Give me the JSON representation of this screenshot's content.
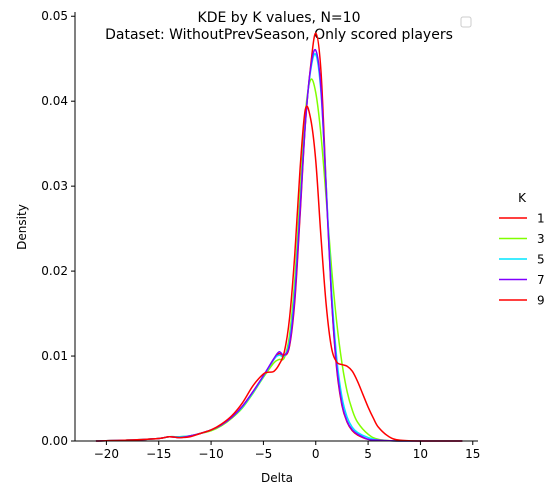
{
  "chart_data": {
    "type": "line",
    "title": "KDE by K values, N=10",
    "subtitle": "Dataset: WithoutPrevSeason, Only scored players",
    "xlabel": "Delta",
    "ylabel": "Density",
    "xlim": [
      -23,
      15.5
    ],
    "ylim": [
      0,
      0.0505
    ],
    "x_ticks": [
      -20,
      -15,
      -10,
      -5,
      0,
      5,
      10,
      15
    ],
    "x_tick_labels": [
      "−20",
      "−15",
      "−10",
      "−5",
      "0",
      "5",
      "10",
      "15"
    ],
    "y_ticks": [
      0,
      0.01,
      0.02,
      0.03,
      0.04,
      0.05
    ],
    "y_tick_labels": [
      "0.00",
      "0.01",
      "0.02",
      "0.03",
      "0.04",
      "0.05"
    ],
    "grid": false,
    "legend": {
      "title": "K",
      "placement": "right"
    },
    "series": [
      {
        "name": "1",
        "color": "#ff0000",
        "points": [
          [
            -21,
            0
          ],
          [
            -18,
            0.0001
          ],
          [
            -15,
            0.0003
          ],
          [
            -14,
            0.0005
          ],
          [
            -13,
            0.0004
          ],
          [
            -12,
            0.0006
          ],
          [
            -11,
            0.0009
          ],
          [
            -10,
            0.0013
          ],
          [
            -9,
            0.0019
          ],
          [
            -8,
            0.0028
          ],
          [
            -7,
            0.0041
          ],
          [
            -6,
            0.0058
          ],
          [
            -5,
            0.0076
          ],
          [
            -4,
            0.0096
          ],
          [
            -3.5,
            0.0103
          ],
          [
            -3,
            0.01
          ],
          [
            -2.5,
            0.0112
          ],
          [
            -2,
            0.0165
          ],
          [
            -1.5,
            0.0265
          ],
          [
            -1,
            0.0372
          ],
          [
            -0.5,
            0.044
          ],
          [
            0,
            0.048
          ],
          [
            0.5,
            0.0435
          ],
          [
            1,
            0.03
          ],
          [
            1.5,
            0.017
          ],
          [
            2,
            0.0085
          ],
          [
            2.5,
            0.0042
          ],
          [
            3,
            0.0022
          ],
          [
            3.5,
            0.0012
          ],
          [
            4,
            0.0007
          ],
          [
            5,
            0.0002
          ],
          [
            6,
            0.0001
          ],
          [
            8,
            0
          ],
          [
            14,
            0
          ]
        ]
      },
      {
        "name": "3",
        "color": "#80ff00",
        "points": [
          [
            -21,
            0
          ],
          [
            -18,
            0.0001
          ],
          [
            -15,
            0.0003
          ],
          [
            -14,
            0.0005
          ],
          [
            -13,
            0.0005
          ],
          [
            -12,
            0.0006
          ],
          [
            -11,
            0.0009
          ],
          [
            -10,
            0.0012
          ],
          [
            -9,
            0.0018
          ],
          [
            -8,
            0.0027
          ],
          [
            -7,
            0.0039
          ],
          [
            -6,
            0.0056
          ],
          [
            -5,
            0.0075
          ],
          [
            -4,
            0.0092
          ],
          [
            -3.5,
            0.0096
          ],
          [
            -3,
            0.0098
          ],
          [
            -2.5,
            0.0125
          ],
          [
            -2,
            0.019
          ],
          [
            -1.5,
            0.029
          ],
          [
            -1,
            0.0385
          ],
          [
            -0.5,
            0.0425
          ],
          [
            0,
            0.041
          ],
          [
            0.5,
            0.036
          ],
          [
            1,
            0.0285
          ],
          [
            1.5,
            0.0205
          ],
          [
            2,
            0.014
          ],
          [
            2.5,
            0.0092
          ],
          [
            3,
            0.0058
          ],
          [
            3.5,
            0.0036
          ],
          [
            4,
            0.0022
          ],
          [
            5,
            0.0008
          ],
          [
            6,
            0.0002
          ],
          [
            8,
            0
          ],
          [
            14,
            0
          ]
        ]
      },
      {
        "name": "5",
        "color": "#00e5ff",
        "points": [
          [
            -21,
            0
          ],
          [
            -18,
            0.0001
          ],
          [
            -15,
            0.0003
          ],
          [
            -14,
            0.0005
          ],
          [
            -13,
            0.0005
          ],
          [
            -12,
            0.0006
          ],
          [
            -11,
            0.0009
          ],
          [
            -10,
            0.0013
          ],
          [
            -9,
            0.0019
          ],
          [
            -8,
            0.0028
          ],
          [
            -7,
            0.004
          ],
          [
            -6,
            0.0057
          ],
          [
            -5,
            0.0076
          ],
          [
            -4,
            0.0096
          ],
          [
            -3.5,
            0.0101
          ],
          [
            -3,
            0.01
          ],
          [
            -2.5,
            0.0118
          ],
          [
            -2,
            0.0178
          ],
          [
            -1.5,
            0.0275
          ],
          [
            -1,
            0.0375
          ],
          [
            -0.5,
            0.0435
          ],
          [
            0,
            0.0455
          ],
          [
            0.5,
            0.041
          ],
          [
            1,
            0.03
          ],
          [
            1.5,
            0.018
          ],
          [
            2,
            0.0098
          ],
          [
            2.5,
            0.0052
          ],
          [
            3,
            0.0028
          ],
          [
            3.5,
            0.0016
          ],
          [
            4,
            0.001
          ],
          [
            5,
            0.0004
          ],
          [
            6,
            0.0001
          ],
          [
            8,
            0
          ],
          [
            14,
            0
          ]
        ]
      },
      {
        "name": "7",
        "color": "#8000ff",
        "points": [
          [
            -21,
            0
          ],
          [
            -18,
            0.0001
          ],
          [
            -15,
            0.0003
          ],
          [
            -14,
            0.0005
          ],
          [
            -13,
            0.0004
          ],
          [
            -12,
            0.0006
          ],
          [
            -11,
            0.0009
          ],
          [
            -10,
            0.0013
          ],
          [
            -9,
            0.0019
          ],
          [
            -8,
            0.0028
          ],
          [
            -7,
            0.0041
          ],
          [
            -6,
            0.0058
          ],
          [
            -5,
            0.0077
          ],
          [
            -4,
            0.0097
          ],
          [
            -3.5,
            0.0105
          ],
          [
            -3,
            0.0101
          ],
          [
            -2.5,
            0.0114
          ],
          [
            -2,
            0.017
          ],
          [
            -1.5,
            0.027
          ],
          [
            -1,
            0.0373
          ],
          [
            -0.5,
            0.0438
          ],
          [
            0,
            0.046
          ],
          [
            0.5,
            0.0415
          ],
          [
            1,
            0.0295
          ],
          [
            1.5,
            0.017
          ],
          [
            2,
            0.0088
          ],
          [
            2.5,
            0.0044
          ],
          [
            3,
            0.0023
          ],
          [
            3.5,
            0.0013
          ],
          [
            4,
            0.0008
          ],
          [
            5,
            0.0002
          ],
          [
            6,
            0.0001
          ],
          [
            8,
            0
          ],
          [
            14,
            0
          ]
        ]
      },
      {
        "name": "9",
        "color": "#ff0000",
        "points": [
          [
            -21,
            0
          ],
          [
            -18,
            0.0001
          ],
          [
            -15,
            0.0003
          ],
          [
            -14,
            0.0005
          ],
          [
            -13,
            0.0004
          ],
          [
            -12,
            0.0005
          ],
          [
            -11,
            0.0009
          ],
          [
            -10,
            0.0013
          ],
          [
            -9,
            0.002
          ],
          [
            -8,
            0.003
          ],
          [
            -7,
            0.0045
          ],
          [
            -6,
            0.0065
          ],
          [
            -5,
            0.0079
          ],
          [
            -4.5,
            0.0081
          ],
          [
            -4,
            0.0082
          ],
          [
            -3.5,
            0.009
          ],
          [
            -3,
            0.0105
          ],
          [
            -2.5,
            0.0145
          ],
          [
            -2,
            0.022
          ],
          [
            -1.5,
            0.032
          ],
          [
            -1,
            0.039
          ],
          [
            -0.5,
            0.038
          ],
          [
            0,
            0.033
          ],
          [
            0.5,
            0.024
          ],
          [
            1,
            0.016
          ],
          [
            1.5,
            0.011
          ],
          [
            2,
            0.0093
          ],
          [
            2.5,
            0.009
          ],
          [
            3,
            0.0088
          ],
          [
            3.5,
            0.0082
          ],
          [
            4,
            0.007
          ],
          [
            4.5,
            0.0055
          ],
          [
            5,
            0.004
          ],
          [
            5.5,
            0.0027
          ],
          [
            6,
            0.0016
          ],
          [
            7,
            0.0005
          ],
          [
            8,
            0.0001
          ],
          [
            10,
            0
          ],
          [
            14,
            0
          ]
        ]
      }
    ]
  }
}
